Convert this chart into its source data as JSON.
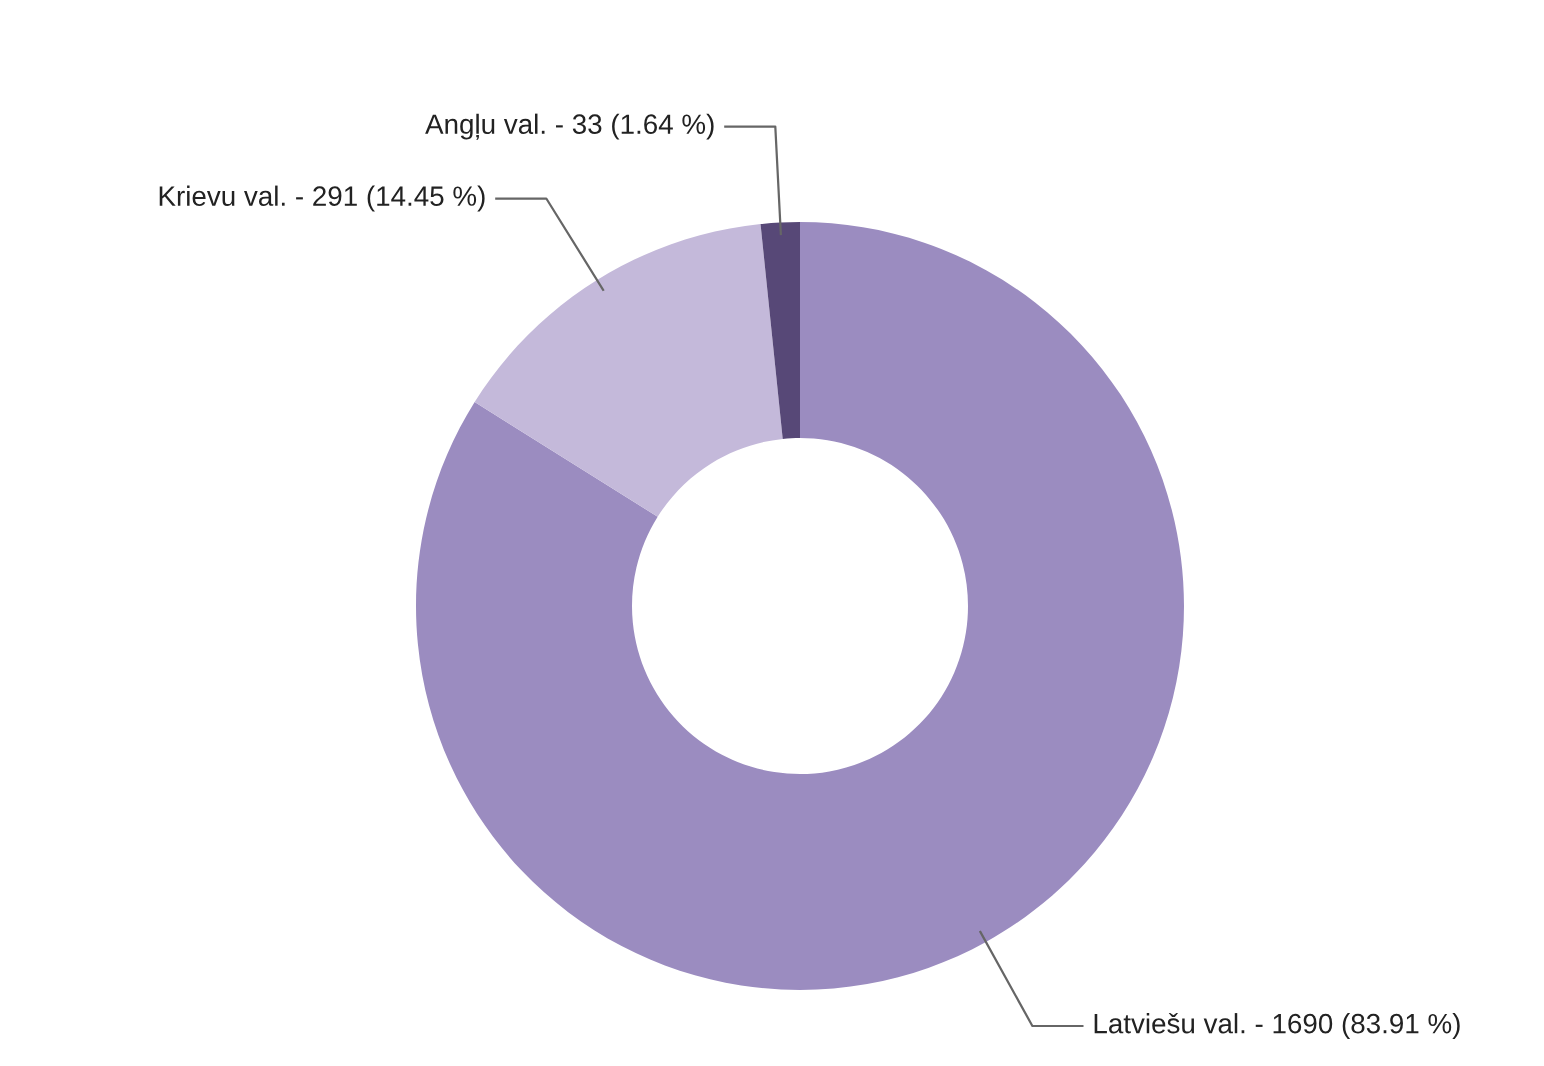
{
  "chart_data": {
    "type": "donut",
    "categories": [
      "Latviešu val.",
      "Krievu val.",
      "Angļu val."
    ],
    "values": [
      1690,
      291,
      33
    ],
    "value_labels": [
      "1690 (83.91 %)",
      "291 (14.45 %)",
      "33 (1.64 %)"
    ],
    "colors": [
      "#9b8cc0",
      "#c4b9da",
      "#574877"
    ]
  }
}
